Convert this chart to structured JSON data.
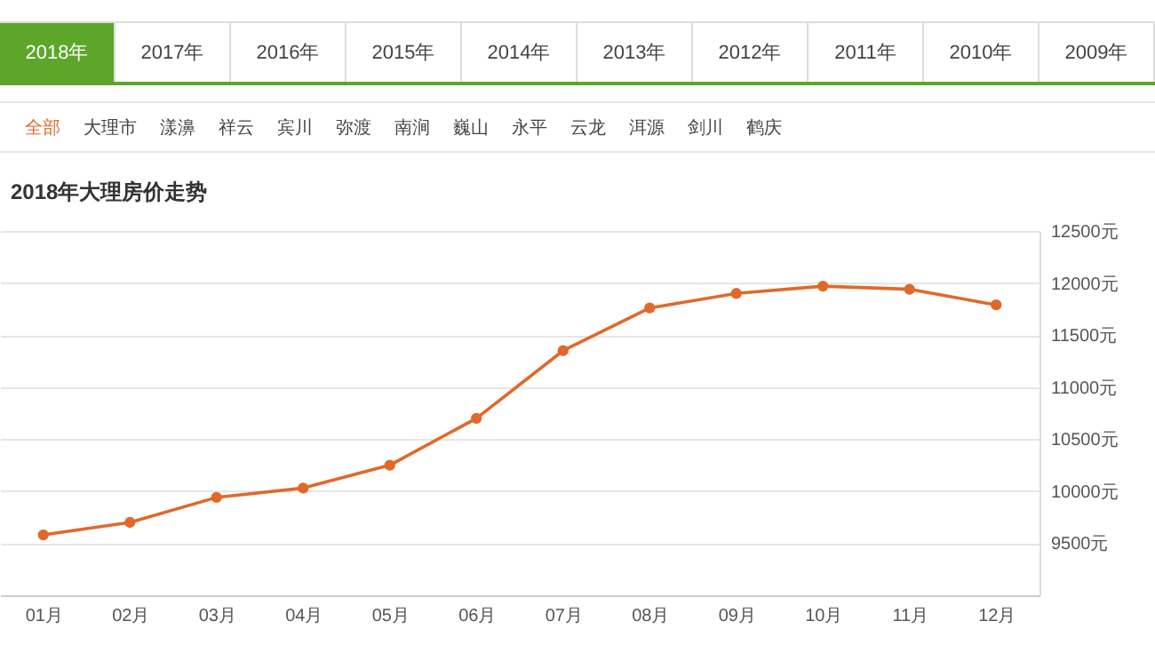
{
  "chart_data": {
    "type": "line",
    "title": "2018年大理房价走势",
    "annotations": [
      "2018年",
      "2017年",
      "2016年",
      "2015年",
      "2014年",
      "2013年",
      "2012年",
      "2011年",
      "2010年",
      "2009年",
      "全部",
      "大理市",
      "漾濞",
      "祥云",
      "宾川",
      "弥渡",
      "南涧",
      "巍山",
      "永平",
      "云龙",
      "洱源",
      "剑川",
      "鹤庆"
    ],
    "categories": [
      "01月",
      "02月",
      "03月",
      "04月",
      "05月",
      "06月",
      "07月",
      "08月",
      "09月",
      "10月",
      "11月",
      "12月"
    ],
    "series": [
      {
        "color": "#e0692a",
        "values": [
          9580,
          9700,
          9940,
          10030,
          10250,
          10700,
          11350,
          11760,
          11900,
          11970,
          11940,
          11790
        ]
      }
    ],
    "ylim": [
      9000,
      12500
    ],
    "yticks": [
      {
        "value": 9500,
        "label": "9500元"
      },
      {
        "value": 10000,
        "label": "10000元"
      },
      {
        "value": 10500,
        "label": "10500元"
      },
      {
        "value": 11000,
        "label": "11000元"
      },
      {
        "value": 11500,
        "label": "11500元"
      },
      {
        "value": 12000,
        "label": "12000元"
      },
      {
        "value": 12500,
        "label": "12500元"
      }
    ],
    "grid": "y",
    "marker": "circle",
    "line_style": "solid"
  }
}
